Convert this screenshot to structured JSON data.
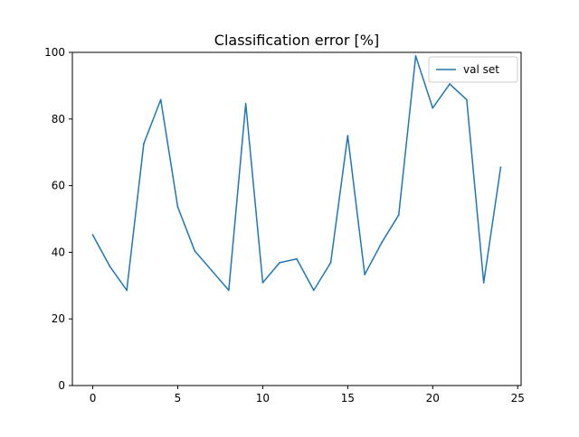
{
  "chart_data": {
    "type": "line",
    "title": "Classification error [%]",
    "xlabel": "",
    "ylabel": "",
    "xlim": [
      -1.2,
      25.2
    ],
    "ylim": [
      0,
      100
    ],
    "x_ticks": [
      0,
      5,
      10,
      15,
      20,
      25
    ],
    "y_ticks": [
      0,
      20,
      40,
      60,
      80,
      100
    ],
    "x_tick_labels": [
      "0",
      "5",
      "10",
      "15",
      "20",
      "25"
    ],
    "y_tick_labels": [
      "0",
      "20",
      "40",
      "60",
      "80",
      "100"
    ],
    "grid": false,
    "legend": {
      "position": "top-right"
    },
    "series": [
      {
        "name": "val set",
        "color": "#1f77b4",
        "x": [
          0,
          1,
          2,
          3,
          4,
          5,
          6,
          7,
          8,
          9,
          10,
          11,
          12,
          13,
          14,
          15,
          16,
          17,
          18,
          19,
          20,
          21,
          22,
          23,
          24
        ],
        "values": [
          45.2,
          35.8,
          28.6,
          72.6,
          85.8,
          53.6,
          40.4,
          34.5,
          28.6,
          84.6,
          30.9,
          36.9,
          38.0,
          28.6,
          36.9,
          75.0,
          33.3,
          42.9,
          51.2,
          98.9,
          83.3,
          90.5,
          85.8,
          30.9,
          65.5
        ]
      }
    ]
  }
}
